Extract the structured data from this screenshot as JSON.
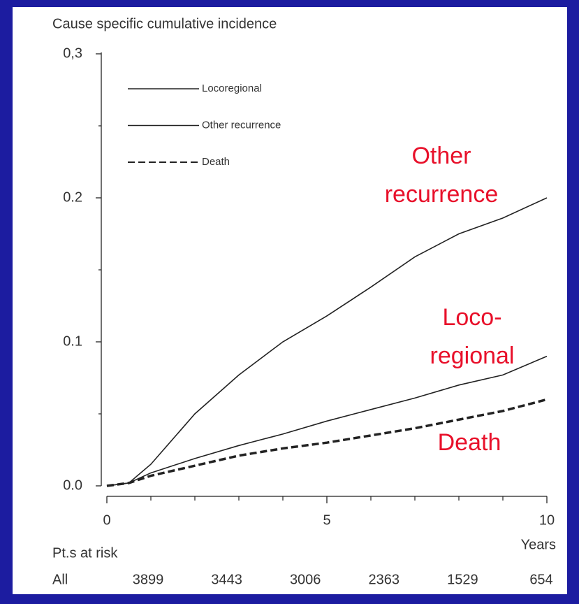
{
  "chart_data": {
    "type": "line",
    "title": "Cause specific cumulative incidence",
    "x_label": "Years",
    "x": [
      0,
      0.5,
      1,
      2,
      3,
      4,
      5,
      6,
      7,
      8,
      9,
      10
    ],
    "series": [
      {
        "name": "Locoregional",
        "color": "#222222",
        "line_style": "solid",
        "values": [
          0,
          0.002,
          0.009,
          0.019,
          0.028,
          0.036,
          0.045,
          0.053,
          0.061,
          0.07,
          0.077,
          0.09
        ]
      },
      {
        "name": "Other recurrence",
        "color": "#222222",
        "line_style": "solid",
        "values": [
          0,
          0.002,
          0.015,
          0.05,
          0.077,
          0.1,
          0.118,
          0.138,
          0.159,
          0.175,
          0.186,
          0.2
        ]
      },
      {
        "name": "Death",
        "color": "#222222",
        "line_style": "dashed",
        "values": [
          0,
          0.002,
          0.007,
          0.014,
          0.021,
          0.026,
          0.03,
          0.035,
          0.04,
          0.046,
          0.052,
          0.06
        ]
      }
    ],
    "xlim": [
      0,
      10
    ],
    "xticks": [
      0,
      5,
      10
    ],
    "xminorticks": [
      1,
      2,
      3,
      4,
      6,
      7,
      8,
      9
    ],
    "ylim": [
      0,
      0.3
    ],
    "yticks": [
      {
        "value": 0,
        "label": "0.0"
      },
      {
        "value": 0.1,
        "label": "0.1"
      },
      {
        "value": 0.2,
        "label": "0.2"
      },
      {
        "value": 0.3,
        "label": "0,3"
      }
    ],
    "yminorticks": [
      0.05,
      0.15,
      0.25
    ],
    "legend": "top-left",
    "annotations": [
      {
        "lines": [
          "Other",
          "recurrence"
        ],
        "color": "#e8102a"
      },
      {
        "lines": [
          "Loco-",
          "regional"
        ],
        "color": "#e8102a"
      },
      {
        "lines": [
          "Death"
        ],
        "color": "#e8102a"
      }
    ],
    "at_risk": {
      "title": "Pt.s at risk",
      "label": "All",
      "values": [
        3899,
        3443,
        3006,
        2363,
        1529,
        654
      ]
    }
  }
}
